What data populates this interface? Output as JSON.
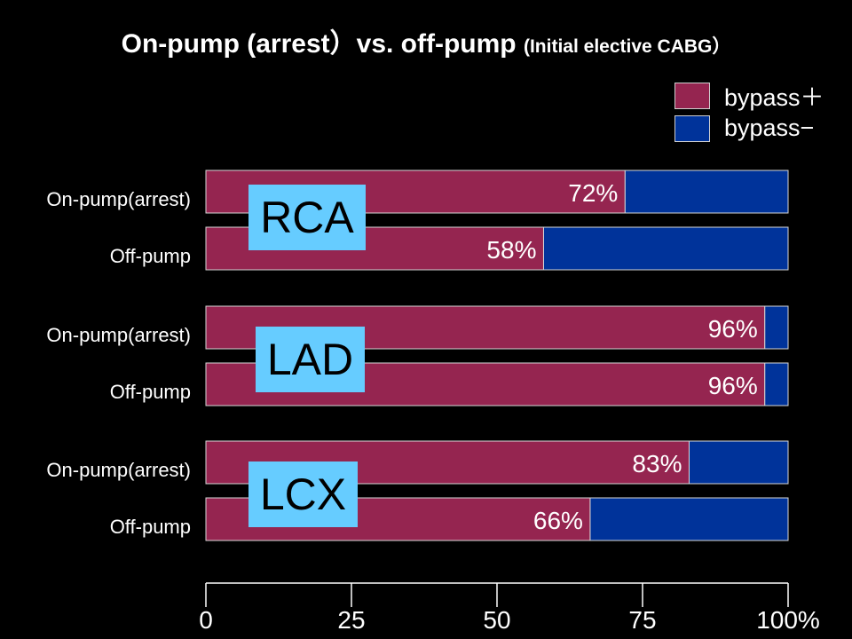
{
  "colors": {
    "background": "#000000",
    "bypass_plus": "#952550",
    "bypass_minus": "#00339a",
    "badge": "#66ccff"
  },
  "chart_data": {
    "type": "bar",
    "orientation": "horizontal",
    "stacked": true,
    "title": "On-pump (arrest）vs. off-pump",
    "subtitle": "(Initial elective CABG）",
    "legend": [
      {
        "label": "bypass＋",
        "color": "#952550"
      },
      {
        "label": "bypass−",
        "color": "#00339a"
      }
    ],
    "legend_position": "top-right",
    "groups": [
      {
        "name": "RCA",
        "bars": [
          {
            "category": "On-pump(arrest)",
            "bypass_plus": 72,
            "bypass_minus": 28,
            "label": "72%"
          },
          {
            "category": "Off-pump",
            "bypass_plus": 58,
            "bypass_minus": 42,
            "label": "58%"
          }
        ]
      },
      {
        "name": "LAD",
        "bars": [
          {
            "category": "On-pump(arrest)",
            "bypass_plus": 96,
            "bypass_minus": 4,
            "label": "96%"
          },
          {
            "category": "Off-pump",
            "bypass_plus": 96,
            "bypass_minus": 4,
            "label": "96%"
          }
        ]
      },
      {
        "name": "LCX",
        "bars": [
          {
            "category": "On-pump(arrest)",
            "bypass_plus": 83,
            "bypass_minus": 17,
            "label": "83%"
          },
          {
            "category": "Off-pump",
            "bypass_plus": 66,
            "bypass_minus": 34,
            "label": "66%"
          }
        ]
      }
    ],
    "xlim": [
      0,
      100
    ],
    "xticks": [
      0,
      25,
      50,
      75,
      100
    ],
    "xtick_labels": [
      "0",
      "25",
      "50",
      "75",
      "100%"
    ],
    "grid": false
  }
}
